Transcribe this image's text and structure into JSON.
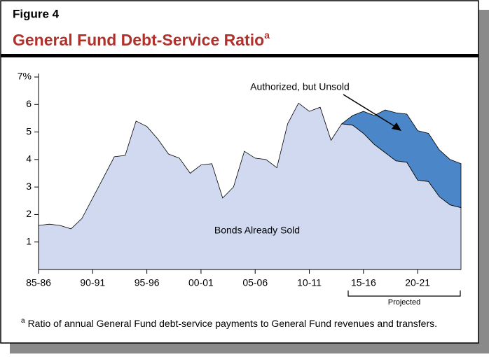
{
  "chart_data": {
    "type": "area",
    "stacked": true,
    "figure_label": "Figure 4",
    "title": "General Fund Debt-Service Ratio",
    "title_marker": "a",
    "categories": [
      "85-86",
      null,
      null,
      null,
      null,
      "90-91",
      null,
      null,
      null,
      null,
      "95-96",
      null,
      null,
      null,
      null,
      "00-01",
      null,
      null,
      null,
      null,
      "05-06",
      null,
      null,
      null,
      null,
      "10-11",
      null,
      null,
      null,
      null,
      "15-16",
      null,
      null,
      null,
      null,
      "20-21",
      null,
      null,
      null,
      null
    ],
    "series": [
      {
        "name": "Bonds Already Sold",
        "color": "#d0d9f0",
        "values": [
          1.6,
          1.65,
          1.6,
          1.48,
          1.85,
          2.6,
          3.35,
          4.1,
          4.15,
          5.4,
          5.2,
          4.75,
          4.2,
          4.05,
          3.5,
          3.8,
          3.85,
          2.6,
          3.0,
          4.3,
          4.05,
          4.0,
          3.7,
          5.3,
          6.05,
          5.75,
          5.9,
          4.7,
          5.3,
          5.25,
          4.95,
          4.55,
          4.25,
          3.95,
          3.9,
          3.25,
          3.2,
          2.65,
          2.35,
          2.25
        ]
      },
      {
        "name": "Authorized, but Unsold",
        "color": "#4a86c8",
        "values": [
          null,
          null,
          null,
          null,
          null,
          null,
          null,
          null,
          null,
          null,
          null,
          null,
          null,
          null,
          null,
          null,
          null,
          null,
          null,
          null,
          null,
          null,
          null,
          null,
          null,
          null,
          null,
          null,
          0,
          0.35,
          0.8,
          1.05,
          1.55,
          1.75,
          1.75,
          1.8,
          1.75,
          1.7,
          1.65,
          1.6
        ]
      }
    ],
    "ylim": [
      0,
      7
    ],
    "yticks": [
      1,
      2,
      3,
      4,
      5,
      6,
      {
        "value": 7,
        "label": "7%"
      }
    ],
    "projected_label": "Projected",
    "footnote_marker": "a",
    "footnote": "Ratio of annual General Fund debt-service payments to General Fund revenues and transfers."
  }
}
